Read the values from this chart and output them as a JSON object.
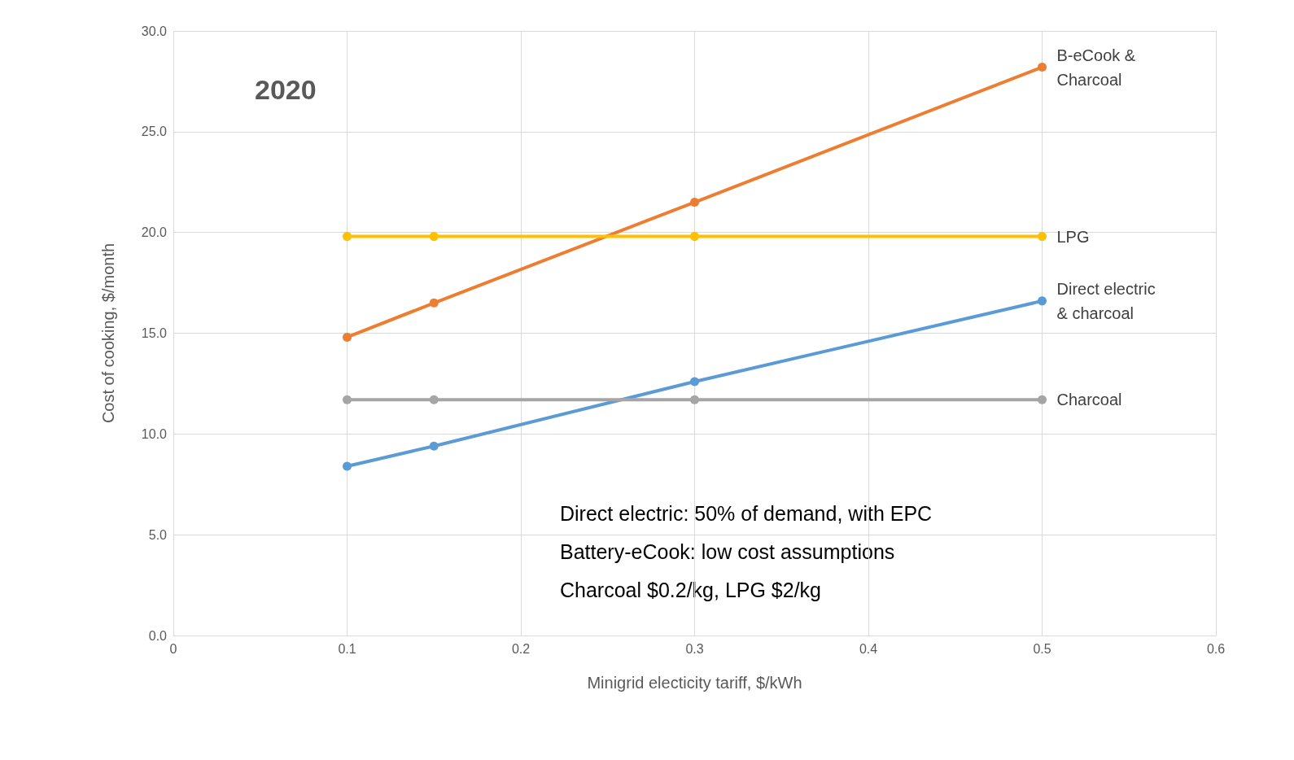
{
  "chart_data": {
    "type": "line",
    "xlabel": "Minigrid electicity tariff, $/kWh",
    "ylabel": "Cost of cooking, $/month",
    "x": [
      0.1,
      0.15,
      0.3,
      0.5
    ],
    "series": [
      {
        "name": "B-eCook &\nCharcoal",
        "color": "#ed7d31",
        "values": [
          14.8,
          16.5,
          21.5,
          28.2
        ]
      },
      {
        "name": "LPG",
        "color": "#ffc000",
        "values": [
          19.8,
          19.8,
          19.8,
          19.8
        ]
      },
      {
        "name": "Direct electric\n& charcoal",
        "color": "#5b9bd5",
        "values": [
          8.4,
          9.4,
          12.6,
          16.6
        ]
      },
      {
        "name": "Charcoal",
        "color": "#a5a5a5",
        "values": [
          11.7,
          11.7,
          11.7,
          11.7
        ]
      }
    ],
    "xlim": [
      0,
      0.6
    ],
    "xticks": [
      0,
      0.1,
      0.2,
      0.3,
      0.4,
      0.5,
      0.6
    ],
    "ylim": [
      0,
      30
    ],
    "yticks": [
      {
        "value": 0,
        "label": "0.0"
      },
      {
        "value": 5,
        "label": "5.0"
      },
      {
        "value": 10,
        "label": "10.0"
      },
      {
        "value": 15,
        "label": "15.0"
      },
      {
        "value": 20,
        "label": "20.0"
      },
      {
        "value": 25,
        "label": "25.0"
      },
      {
        "value": 30,
        "label": "30.0"
      }
    ],
    "annotations": [
      "2020",
      "Direct electric: 50% of demand, with EPC",
      "Battery-eCook: low cost assumptions",
      "Charcoal $0.2/kg, LPG $2/kg"
    ],
    "grid": true,
    "legend": false,
    "marker": "circle",
    "line_style": "solid"
  }
}
